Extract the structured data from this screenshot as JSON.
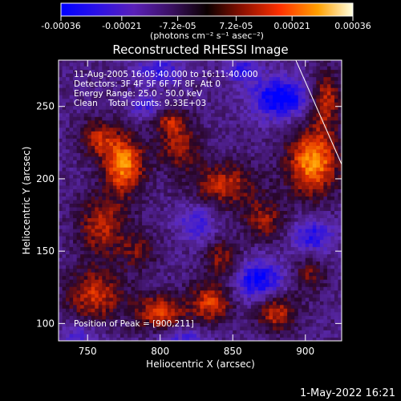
{
  "chart_data": {
    "type": "heatmap",
    "title": "Reconstructed RHESSI Image",
    "xlabel": "Heliocentric X (arcsec)",
    "ylabel": "Heliocentric Y (arcsec)",
    "xlim": [
      730,
      925
    ],
    "ylim": [
      88,
      282
    ],
    "x_ticks": [
      750,
      800,
      850,
      900
    ],
    "y_ticks": [
      100,
      150,
      200,
      250
    ],
    "x_tick_labels": [
      "750",
      "800",
      "850",
      "900"
    ],
    "y_tick_labels": [
      "100",
      "150",
      "200",
      "250"
    ],
    "colorbar": {
      "min": -0.00036,
      "max": 0.00036,
      "tick_values": [
        -0.00036,
        -0.00021,
        -7.2e-05,
        7.2e-05,
        0.00021,
        0.00036
      ],
      "tick_labels": [
        "-0.00036",
        "-0.00021",
        "-7.2e-05",
        "7.2e-05",
        "0.00021",
        "0.00036"
      ],
      "unit_label": "(photons cm⁻² s⁻¹ asec⁻²)"
    },
    "annotations": [
      "11-Aug-2005 16:05:40.000 to 16:11:40.000",
      "Detectors: 3F 4F 5F 6F 7F 8F, Att 0",
      "Energy Range: 25.0 - 50.0 keV",
      "Clean    Total counts: 9.33E+03"
    ],
    "peak_label": "Position of Peak = [900,211]",
    "peak_position": [
      900,
      211
    ],
    "sources": [
      {
        "x": 905,
        "y": 212,
        "sx": 12,
        "sy": 16,
        "amp": 1.0
      },
      {
        "x": 914,
        "y": 255,
        "sx": 7,
        "sy": 14,
        "amp": 0.65
      },
      {
        "x": 775,
        "y": 210,
        "sx": 10,
        "sy": 14,
        "amp": 0.95
      },
      {
        "x": 757,
        "y": 228,
        "sx": 9,
        "sy": 9,
        "amp": 0.55
      },
      {
        "x": 813,
        "y": 222,
        "sx": 10,
        "sy": 11,
        "amp": 0.55
      },
      {
        "x": 845,
        "y": 196,
        "sx": 16,
        "sy": 11,
        "amp": 0.6
      },
      {
        "x": 872,
        "y": 172,
        "sx": 10,
        "sy": 10,
        "amp": 0.5
      },
      {
        "x": 807,
        "y": 240,
        "sx": 9,
        "sy": 6,
        "amp": 0.5
      },
      {
        "x": 760,
        "y": 168,
        "sx": 12,
        "sy": 14,
        "amp": 0.6
      },
      {
        "x": 785,
        "y": 150,
        "sx": 9,
        "sy": 9,
        "amp": 0.4
      },
      {
        "x": 755,
        "y": 120,
        "sx": 14,
        "sy": 13,
        "amp": 0.65
      },
      {
        "x": 800,
        "y": 108,
        "sx": 12,
        "sy": 9,
        "amp": 0.7
      },
      {
        "x": 835,
        "y": 115,
        "sx": 10,
        "sy": 10,
        "amp": 0.7
      },
      {
        "x": 843,
        "y": 145,
        "sx": 8,
        "sy": 9,
        "amp": 0.5
      },
      {
        "x": 880,
        "y": 108,
        "sx": 10,
        "sy": 9,
        "amp": 0.65
      },
      {
        "x": 903,
        "y": 135,
        "sx": 8,
        "sy": 10,
        "amp": 0.4
      },
      {
        "x": 883,
        "y": 256,
        "sx": 14,
        "sy": 10,
        "amp": -0.8
      },
      {
        "x": 800,
        "y": 275,
        "sx": 12,
        "sy": 7,
        "amp": -0.45
      },
      {
        "x": 857,
        "y": 275,
        "sx": 8,
        "sy": 6,
        "amp": -0.5
      },
      {
        "x": 868,
        "y": 130,
        "sx": 12,
        "sy": 10,
        "amp": -0.7
      },
      {
        "x": 905,
        "y": 160,
        "sx": 10,
        "sy": 9,
        "amp": -0.55
      },
      {
        "x": 825,
        "y": 170,
        "sx": 9,
        "sy": 9,
        "amp": -0.45
      },
      {
        "x": 790,
        "y": 250,
        "sx": 8,
        "sy": 6,
        "amp": -0.4
      },
      {
        "x": 745,
        "y": 92,
        "sx": 10,
        "sy": 6,
        "amp": -0.35
      },
      {
        "x": 815,
        "y": 90,
        "sx": 12,
        "sy": 6,
        "amp": -0.4
      }
    ],
    "limb_line": {
      "x": [
        893,
        925
      ],
      "y": [
        283,
        210
      ]
    },
    "grid": false
  },
  "footer": {
    "timestamp": "1-May-2022 16:21"
  }
}
